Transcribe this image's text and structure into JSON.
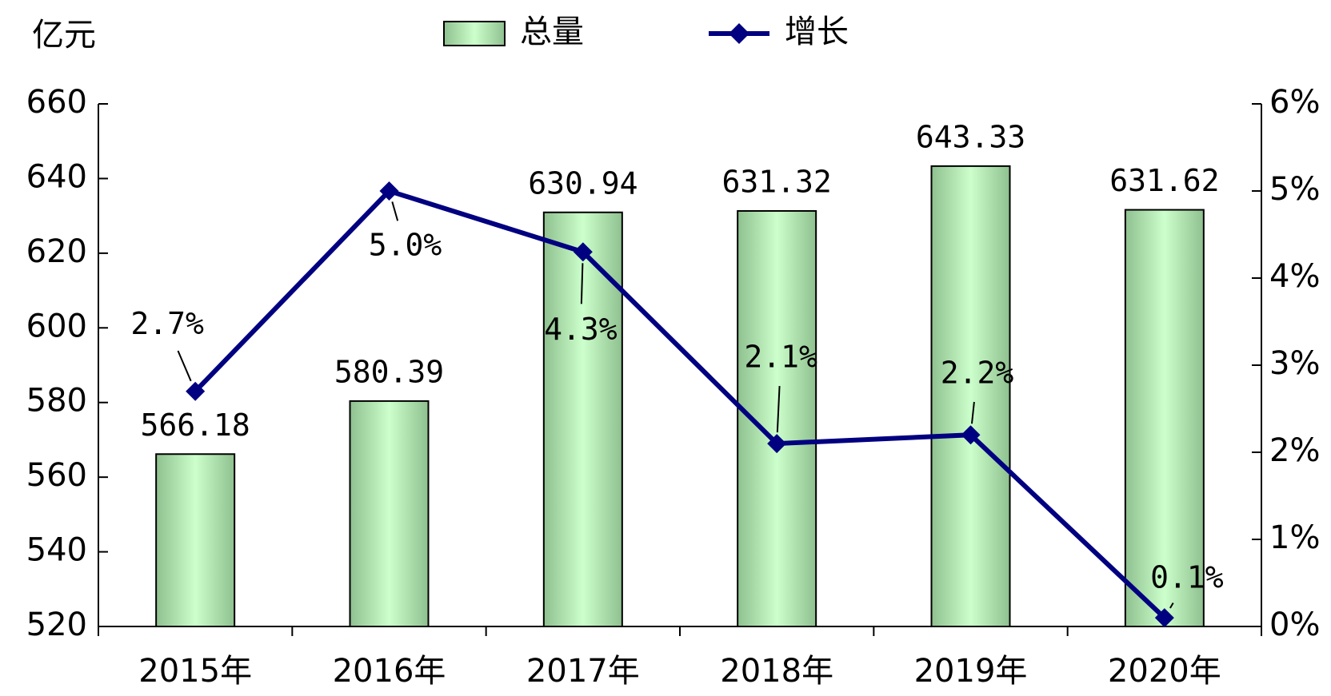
{
  "chart_data": {
    "type": "bar-line",
    "y_axis_label": "亿元",
    "categories": [
      "2015年",
      "2016年",
      "2017年",
      "2018年",
      "2019年",
      "2020年"
    ],
    "series": [
      {
        "name": "总量",
        "type": "bar",
        "color": "#ccffcc",
        "values": [
          566.18,
          580.39,
          630.94,
          631.32,
          643.33,
          631.62
        ]
      },
      {
        "name": "增长",
        "type": "line",
        "axis": "y2",
        "color": "#000080",
        "values": [
          2.7,
          5.0,
          4.3,
          2.1,
          2.2,
          0.1
        ],
        "value_labels": [
          "2.7%",
          "5.0%",
          "4.3%",
          "2.1%",
          "2.2%",
          "0.1%"
        ]
      }
    ],
    "ylim": [
      520,
      660
    ],
    "yticks": [
      520,
      540,
      560,
      580,
      600,
      620,
      640,
      660
    ],
    "y2lim": [
      0,
      6
    ],
    "y2ticks": [
      {
        "value": 0,
        "label": "0%"
      },
      {
        "value": 1,
        "label": "1%"
      },
      {
        "value": 2,
        "label": "2%"
      },
      {
        "value": 3,
        "label": "3%"
      },
      {
        "value": 4,
        "label": "4%"
      },
      {
        "value": 5,
        "label": "5%"
      },
      {
        "value": 6,
        "label": "6%"
      }
    ],
    "grid": false,
    "legend": "top"
  }
}
